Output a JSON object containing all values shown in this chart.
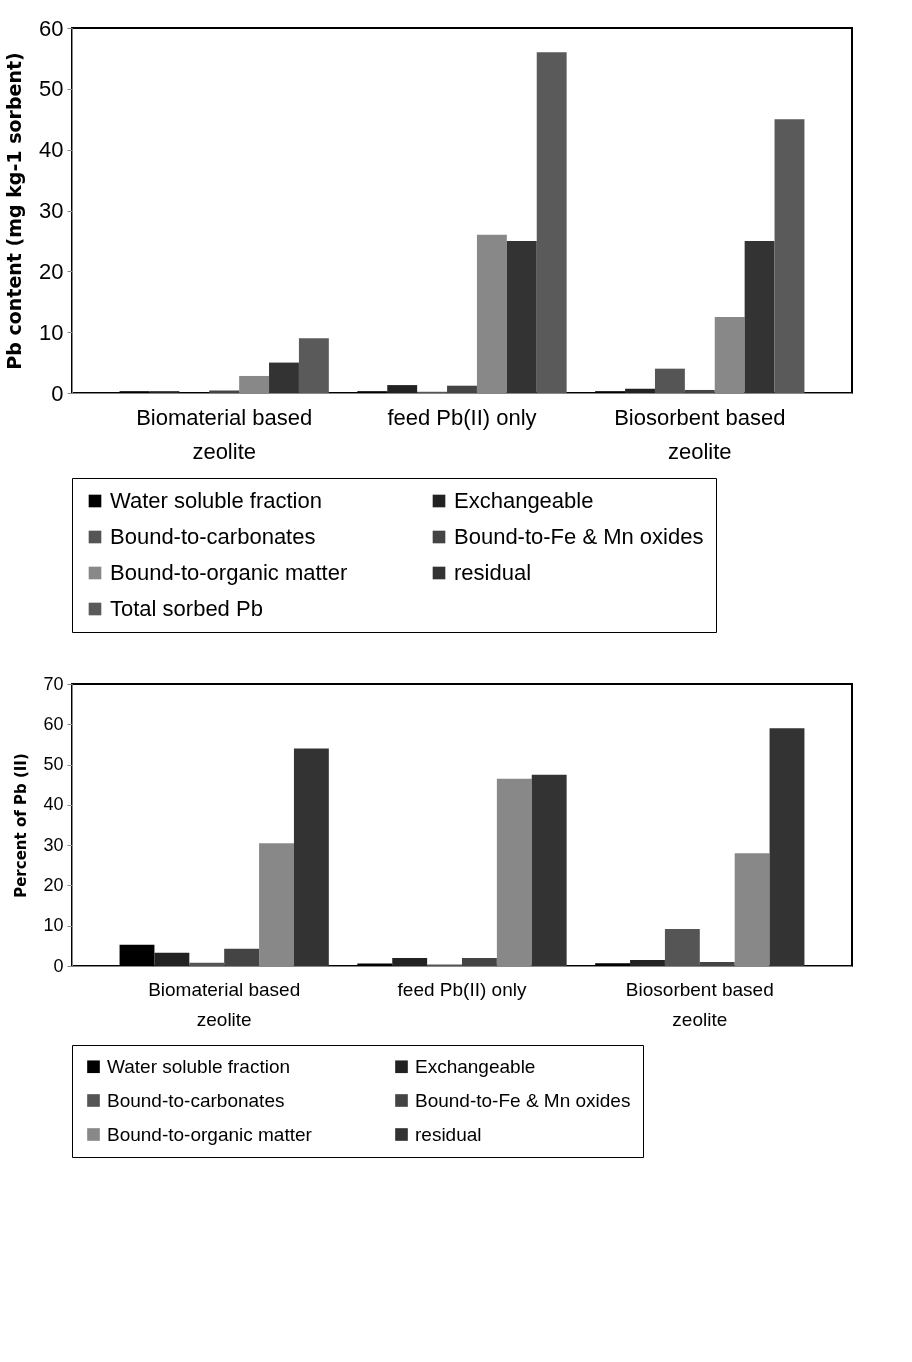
{
  "chart_data": [
    {
      "type": "bar",
      "ylabel": "Pb content (mg kg-1 sorbent)",
      "categories": [
        "Biomaterial based zeolite",
        "feed Pb(II) only",
        "Biosorbent based zeolite"
      ],
      "ylim": [
        0,
        60
      ],
      "yticks": [
        0,
        10,
        20,
        30,
        40,
        50,
        60
      ],
      "grid": false,
      "legend": "bottom",
      "series": [
        {
          "name": "Water soluble fraction",
          "color": "#000000",
          "values": [
            0.3,
            0.3,
            0.3
          ]
        },
        {
          "name": "Exchangeable",
          "color": "#222222",
          "values": [
            0.3,
            1.3,
            0.7
          ]
        },
        {
          "name": "Bound-to-carbonates",
          "color": "#555555",
          "values": [
            null,
            0.2,
            4
          ]
        },
        {
          "name": "Bound-to-Fe & Mn oxides",
          "color": "#444444",
          "values": [
            0.4,
            1.2,
            0.5
          ]
        },
        {
          "name": "Bound-to-organic matter",
          "color": "#888888",
          "values": [
            2.8,
            26,
            12.5
          ]
        },
        {
          "name": "residual",
          "color": "#333333",
          "values": [
            5,
            25,
            25
          ]
        },
        {
          "name": "Total sorbed Pb",
          "color": "#5a5a5a",
          "values": [
            9,
            56,
            45
          ]
        }
      ]
    },
    {
      "type": "bar",
      "ylabel": "Percent of Pb (II)",
      "categories": [
        "Biomaterial based zeolite",
        "feed Pb(II) only",
        "Biosorbent based zeolite"
      ],
      "ylim": [
        0,
        70
      ],
      "yticks": [
        0,
        10,
        20,
        30,
        40,
        50,
        60,
        70
      ],
      "grid": false,
      "legend": "bottom",
      "series": [
        {
          "name": "Water soluble fraction",
          "color": "#000000",
          "values": [
            5.3,
            0.6,
            0.7
          ]
        },
        {
          "name": "Exchangeable",
          "color": "#222222",
          "values": [
            3.3,
            2,
            1.5
          ]
        },
        {
          "name": "Bound-to-carbonates",
          "color": "#555555",
          "values": [
            0.8,
            0.4,
            9.2
          ]
        },
        {
          "name": "Bound-to-Fe & Mn oxides",
          "color": "#444444",
          "values": [
            4.3,
            2,
            1
          ]
        },
        {
          "name": "Bound-to-organic matter",
          "color": "#888888",
          "values": [
            30.5,
            46.5,
            28
          ]
        },
        {
          "name": "residual",
          "color": "#333333",
          "values": [
            54,
            47.5,
            59
          ]
        }
      ]
    }
  ]
}
